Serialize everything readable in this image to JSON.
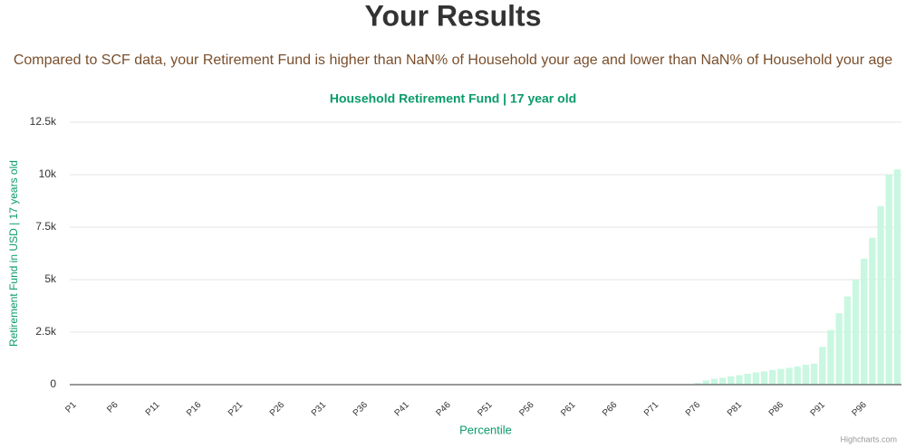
{
  "header": {
    "title": "Your Results",
    "subtitle": "Compared to SCF data, your Retirement Fund is higher than NaN% of Household your age and lower than NaN% of Household your age"
  },
  "chart_data": {
    "type": "bar",
    "title": "Household Retirement Fund | 17 year old",
    "x_label": "Percentile",
    "y_label": "Retirement Fund in USD | 17 years old",
    "credits": "Highcharts.com",
    "color": "#c9f7e1",
    "grid": true,
    "ylim": [
      0,
      12500
    ],
    "yticks": [
      0,
      {
        "value": 2500,
        "label": "2.5k"
      },
      {
        "value": 5000,
        "label": "5k"
      },
      {
        "value": 7500,
        "label": "7.5k"
      },
      {
        "value": 10000,
        "label": "10k"
      },
      {
        "value": 12500,
        "label": "12.5k"
      }
    ],
    "categories": [
      "P1",
      null,
      null,
      null,
      null,
      "P6",
      null,
      null,
      null,
      null,
      "P11",
      null,
      null,
      null,
      null,
      "P16",
      null,
      null,
      null,
      null,
      "P21",
      null,
      null,
      null,
      null,
      "P26",
      null,
      null,
      null,
      null,
      "P31",
      null,
      null,
      null,
      null,
      "P36",
      null,
      null,
      null,
      null,
      "P41",
      null,
      null,
      null,
      null,
      "P46",
      null,
      null,
      null,
      null,
      "P51",
      null,
      null,
      null,
      null,
      "P56",
      null,
      null,
      null,
      null,
      "P61",
      null,
      null,
      null,
      null,
      "P66",
      null,
      null,
      null,
      null,
      "P71",
      null,
      null,
      null,
      null,
      "P76",
      null,
      null,
      null,
      null,
      "P81",
      null,
      null,
      null,
      null,
      "P86",
      null,
      null,
      null,
      null,
      "P91",
      null,
      null,
      null,
      null,
      "P96",
      null,
      null,
      null,
      null
    ],
    "values": [
      0,
      0,
      0,
      0,
      0,
      0,
      0,
      0,
      0,
      0,
      0,
      0,
      0,
      0,
      0,
      0,
      0,
      0,
      0,
      0,
      0,
      0,
      0,
      0,
      0,
      0,
      0,
      0,
      0,
      0,
      0,
      0,
      0,
      0,
      0,
      0,
      0,
      0,
      0,
      0,
      0,
      0,
      0,
      0,
      0,
      0,
      0,
      0,
      0,
      0,
      0,
      0,
      0,
      0,
      0,
      0,
      0,
      0,
      0,
      0,
      0,
      0,
      0,
      0,
      0,
      0,
      0,
      0,
      0,
      0,
      0,
      0,
      0,
      0,
      0,
      80,
      200,
      280,
      330,
      400,
      450,
      520,
      580,
      630,
      700,
      750,
      800,
      870,
      950,
      1000,
      1800,
      2600,
      3400,
      4200,
      5000,
      6000,
      7000,
      8500,
      10000,
      10250
    ]
  }
}
